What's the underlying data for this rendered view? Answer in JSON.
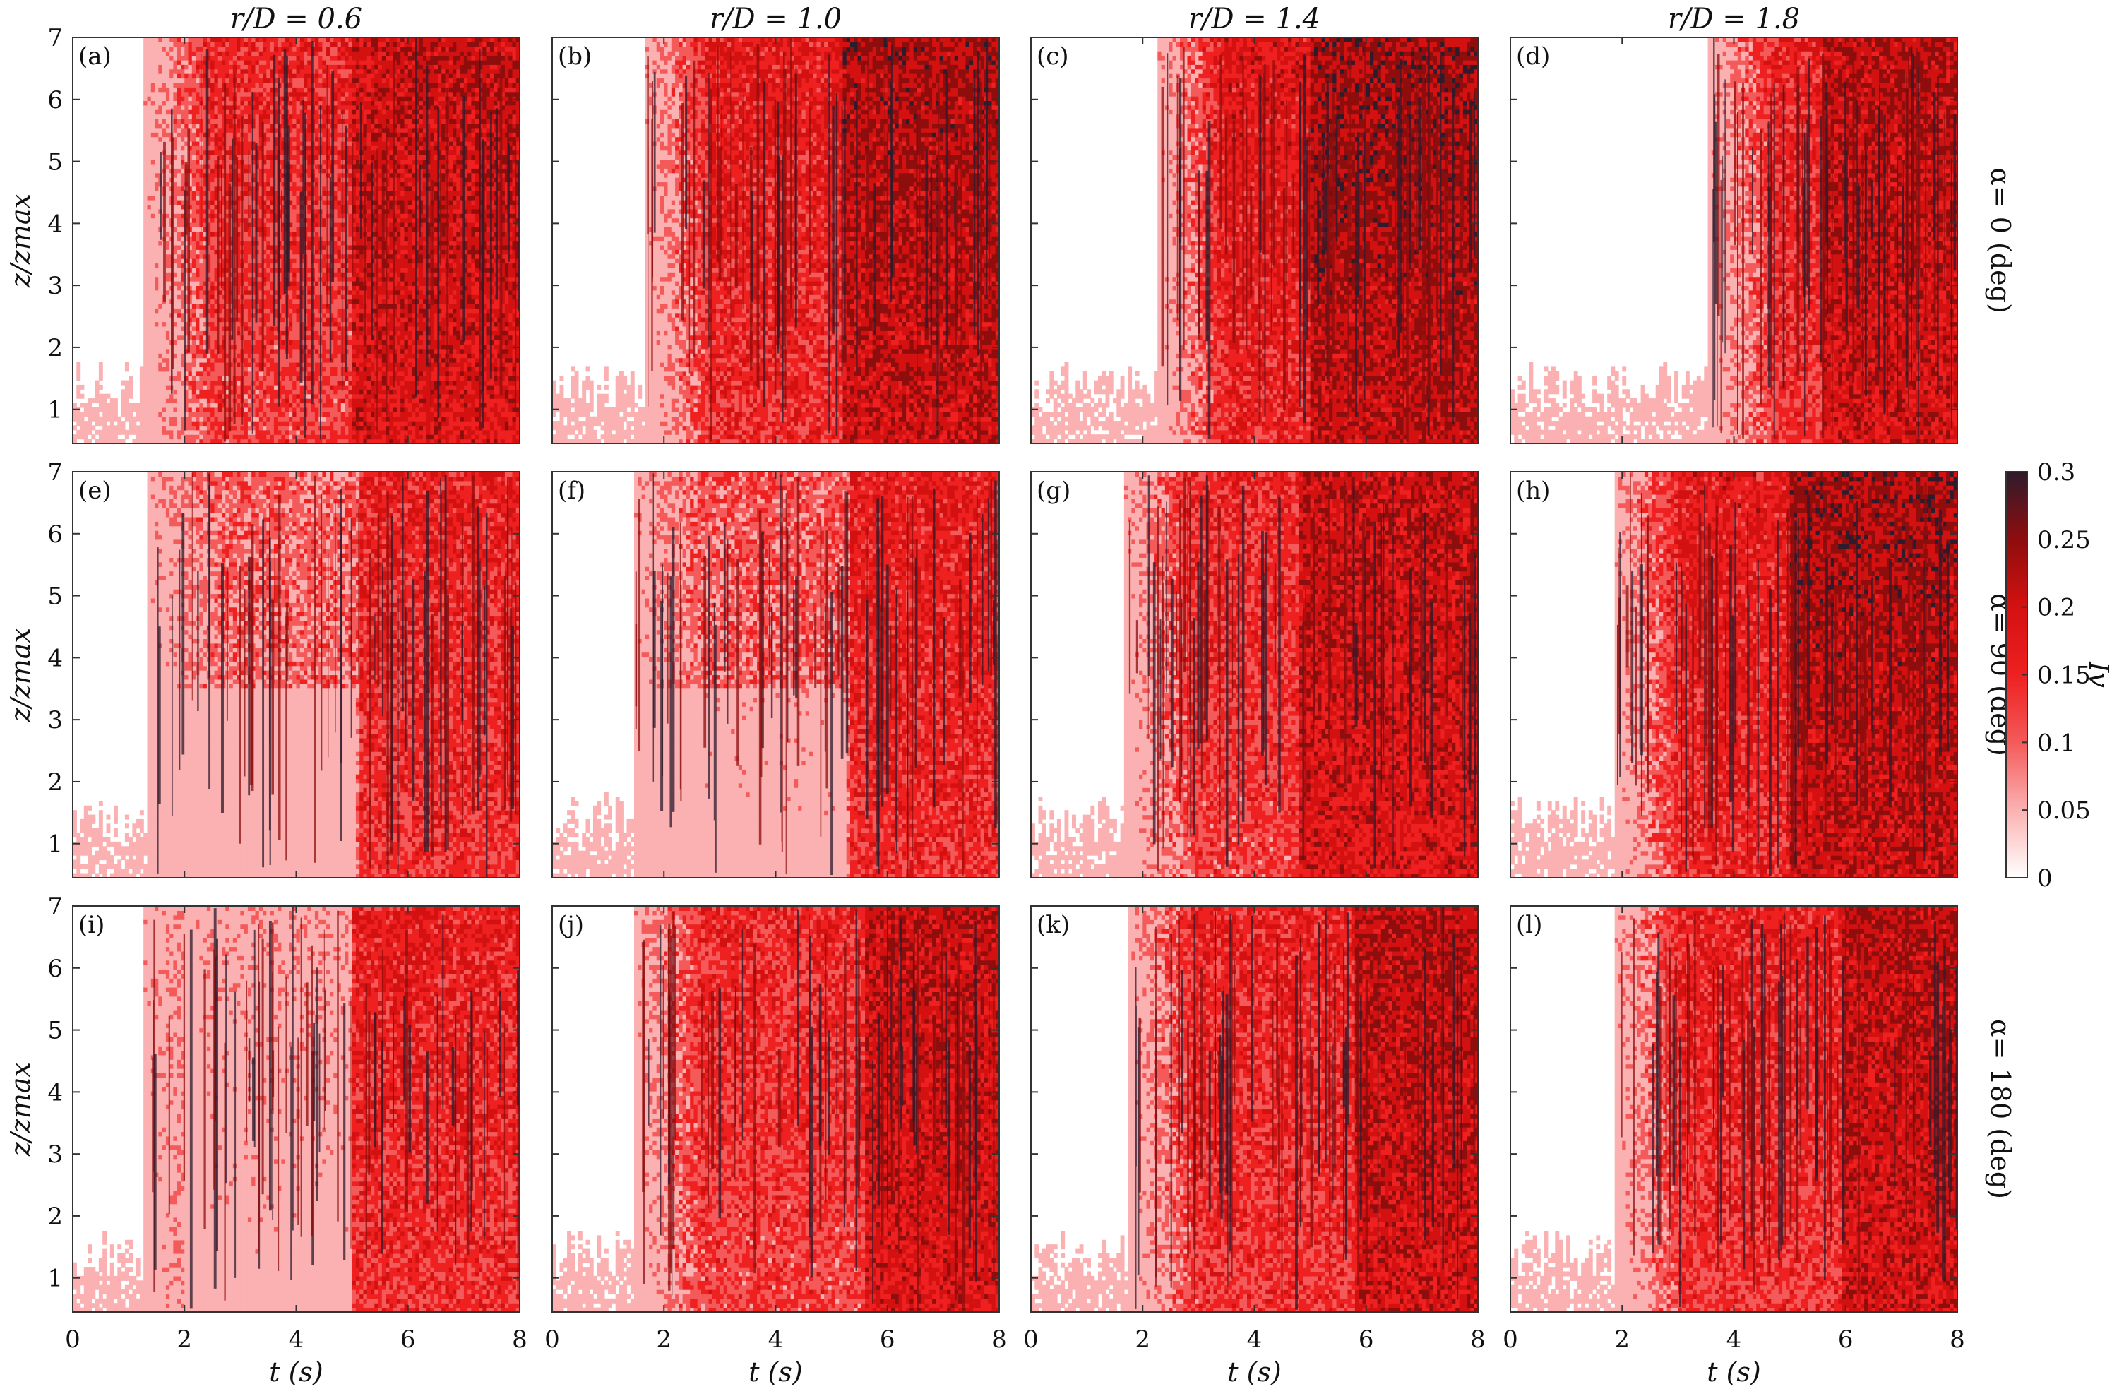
{
  "figure": {
    "column_titles": [
      "r/D = 0.6",
      "r/D = 1.0",
      "r/D = 1.4",
      "r/D = 1.8"
    ],
    "row_labels": [
      "α= 0 (deg)",
      "α= 90 (deg)",
      "α= 180 (deg)"
    ],
    "panel_letters": [
      "(a)",
      "(b)",
      "(c)",
      "(d)",
      "(e)",
      "(f)",
      "(g)",
      "(h)",
      "(i)",
      "(j)",
      "(k)",
      "(l)"
    ],
    "xlabel": "t (s)",
    "ylabel": "z/zmax",
    "colorbar_label": "Iv"
  },
  "colors": {
    "c0": "#ffffff",
    "c1": "#fbb1b1",
    "c2": "#f45a5a",
    "c3": "#ee2020",
    "c4": "#d41111",
    "c5": "#8e0d0d",
    "c6": "#2e1b2c"
  },
  "chart_data": {
    "type": "heatmap",
    "rows": 3,
    "cols": 4,
    "x_ticks": [
      0,
      2,
      4,
      6,
      8
    ],
    "xlim": [
      0,
      8
    ],
    "y_ticks": [
      1,
      2,
      3,
      4,
      5,
      6,
      7
    ],
    "ylim": [
      0.45,
      7
    ],
    "colorbar": {
      "ticks": [
        0,
        0.05,
        0.1,
        0.15,
        0.2,
        0.25,
        0.3
      ],
      "range": [
        0,
        0.3
      ]
    },
    "panels": [
      {
        "id": "a",
        "onset_t": 1.3,
        "base_level": 2.4,
        "late_t": 5.0
      },
      {
        "id": "b",
        "onset_t": 1.7,
        "base_level": 2.8,
        "late_t": 5.2
      },
      {
        "id": "c",
        "onset_t": 2.3,
        "base_level": 3.0,
        "late_t": 5.0
      },
      {
        "id": "d",
        "onset_t": 3.6,
        "base_level": 2.6,
        "late_t": 5.6
      },
      {
        "id": "e",
        "onset_t": 1.4,
        "base_level": 1.4,
        "late_t": 5.1
      },
      {
        "id": "f",
        "onset_t": 1.5,
        "base_level": 1.6,
        "late_t": 5.3
      },
      {
        "id": "g",
        "onset_t": 1.7,
        "base_level": 2.4,
        "late_t": 4.8
      },
      {
        "id": "h",
        "onset_t": 1.9,
        "base_level": 2.9,
        "late_t": 5.0
      },
      {
        "id": "i",
        "onset_t": 1.3,
        "base_level": 1.5,
        "late_t": 5.0
      },
      {
        "id": "j",
        "onset_t": 1.5,
        "base_level": 2.4,
        "late_t": 5.6
      },
      {
        "id": "k",
        "onset_t": 1.8,
        "base_level": 2.6,
        "late_t": 5.8
      },
      {
        "id": "l",
        "onset_t": 1.9,
        "base_level": 2.6,
        "late_t": 5.9
      }
    ]
  }
}
